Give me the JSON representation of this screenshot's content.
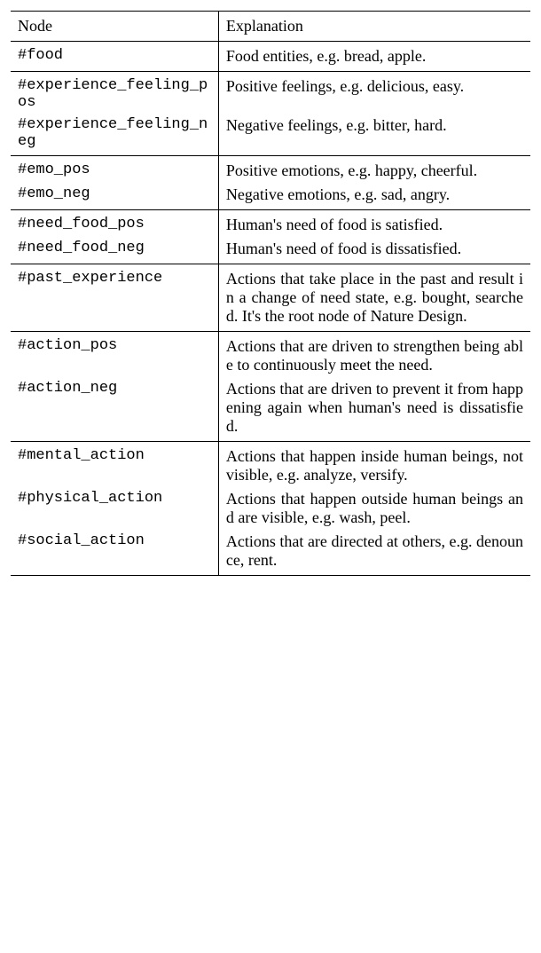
{
  "table": {
    "header": {
      "node": "Node",
      "explanation": "Explanation"
    },
    "groups": [
      {
        "rows": [
          {
            "node": "#food",
            "explanation": "Food entities, e.g. bread, apple."
          }
        ]
      },
      {
        "rows": [
          {
            "node": "#experience_feeling_pos",
            "explanation": "Positive feelings, e.g. delicious, easy."
          },
          {
            "node": "#experience_feeling_neg",
            "explanation": "Negative feelings, e.g. bitter, hard."
          }
        ]
      },
      {
        "rows": [
          {
            "node": "#emo_pos",
            "explanation": "Positive emotions, e.g. happy, cheerful."
          },
          {
            "node": "#emo_neg",
            "explanation": "Negative emotions, e.g. sad, angry."
          }
        ]
      },
      {
        "rows": [
          {
            "node": "#need_food_pos",
            "explanation": "Human's need of food is satisfied."
          },
          {
            "node": "#need_food_neg",
            "explanation": "Human's need of food is dissatisfied."
          }
        ]
      },
      {
        "rows": [
          {
            "node": "#past_experience",
            "explanation": "Actions that take place in the past and result in a change of need state, e.g. bought, searched. It's the root node of Nature Design."
          }
        ]
      },
      {
        "rows": [
          {
            "node": "#action_pos",
            "explanation": "Actions that are driven to strengthen being able to continuously meet the need."
          },
          {
            "node": "#action_neg",
            "explanation": "Actions that are driven to prevent it from happening again when human's need is dissatisfied."
          }
        ]
      },
      {
        "rows": [
          {
            "node": "#mental_action",
            "explanation": "Actions that happen inside human beings, not visible, e.g. analyze, versify."
          },
          {
            "node": "#physical_action",
            "explanation": "Actions that happen outside human beings and are visible, e.g. wash, peel."
          },
          {
            "node": "#social_action",
            "explanation": "Actions that are directed at others, e.g. denounce, rent."
          }
        ]
      }
    ]
  }
}
